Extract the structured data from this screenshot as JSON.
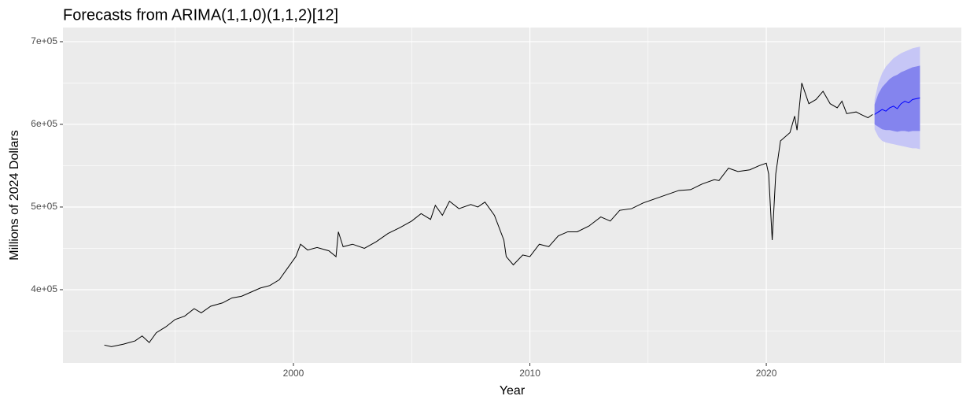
{
  "chart_data": {
    "type": "line",
    "title": "Forecasts from ARIMA(1,1,0)(1,1,2)[12]",
    "x_label": "Year",
    "y_label": "Millions of 2024 Dollars",
    "xlim": [
      1990.25,
      2028.25
    ],
    "xticks": [
      2000,
      2010,
      2020
    ],
    "x_minor_ticks": [
      1995,
      2005,
      2015,
      2025
    ],
    "ylim": [
      311400,
      717100
    ],
    "yticks": [
      {
        "value": 400000,
        "label": "4e+05"
      },
      {
        "value": 500000,
        "label": "5e+05"
      },
      {
        "value": 600000,
        "label": "6e+05"
      },
      {
        "value": 700000,
        "label": "7e+05"
      }
    ],
    "y_minor_ticks": [
      350000,
      450000,
      550000,
      650000
    ],
    "grid": true,
    "series": [
      {
        "color": "#000000",
        "x": [
          1992.0,
          1992.3,
          1992.8,
          1993.3,
          1993.6,
          1993.9,
          1994.2,
          1994.6,
          1995.0,
          1995.4,
          1995.8,
          1996.1,
          1996.5,
          1997.0,
          1997.4,
          1997.8,
          1998.2,
          1998.6,
          1999.0,
          1999.4,
          1999.8,
          2000.1,
          2000.3,
          2000.6,
          2001.0,
          2001.5,
          2001.8,
          2001.9,
          2002.1,
          2002.5,
          2003.0,
          2003.5,
          2004.0,
          2004.5,
          2005.0,
          2005.4,
          2005.8,
          2006.0,
          2006.3,
          2006.6,
          2007.0,
          2007.5,
          2007.8,
          2008.1,
          2008.5,
          2008.9,
          2009.0,
          2009.3,
          2009.7,
          2010.0,
          2010.4,
          2010.8,
          2011.2,
          2011.6,
          2012.0,
          2012.5,
          2013.0,
          2013.4,
          2013.8,
          2014.3,
          2014.8,
          2015.3,
          2015.8,
          2016.3,
          2016.8,
          2017.3,
          2017.8,
          2018.0,
          2018.4,
          2018.8,
          2019.3,
          2019.7,
          2020.0,
          2020.1,
          2020.25,
          2020.4,
          2020.6,
          2021.0,
          2021.2,
          2021.3,
          2021.5,
          2021.8,
          2022.1,
          2022.4,
          2022.7,
          2023.0,
          2023.2,
          2023.4,
          2023.8,
          2024.0,
          2024.3,
          2024.5
        ],
        "values": [
          333000,
          331000,
          334000,
          338000,
          344000,
          336000,
          348000,
          355000,
          364000,
          368000,
          377000,
          372000,
          380000,
          384000,
          390000,
          392000,
          397000,
          402000,
          405000,
          412000,
          428000,
          440000,
          455000,
          448000,
          451000,
          447000,
          440000,
          470000,
          452000,
          455000,
          450000,
          458000,
          468000,
          475000,
          483000,
          492000,
          485000,
          502000,
          490000,
          507000,
          498000,
          503000,
          500000,
          506000,
          490000,
          460000,
          440000,
          430000,
          442000,
          440000,
          455000,
          452000,
          465000,
          470000,
          470000,
          477000,
          488000,
          483000,
          496000,
          498000,
          505000,
          510000,
          515000,
          520000,
          521000,
          528000,
          533000,
          532000,
          547000,
          543000,
          545000,
          550000,
          553000,
          540000,
          460000,
          540000,
          580000,
          590000,
          610000,
          593000,
          650000,
          625000,
          630000,
          640000,
          625000,
          620000,
          628000,
          613000,
          615000,
          612000,
          608000,
          612000
        ]
      }
    ],
    "forecast": {
      "x": [
        2024.58,
        2024.74,
        2024.9,
        2025.06,
        2025.22,
        2025.38,
        2025.54,
        2025.7,
        2025.86,
        2026.02,
        2026.18,
        2026.34,
        2026.5
      ],
      "mean": [
        612000,
        615000,
        618000,
        616000,
        620000,
        622000,
        619000,
        625000,
        628000,
        626000,
        630000,
        631000,
        632000
      ],
      "lo80": [
        600000,
        597000,
        594000,
        593000,
        593000,
        592000,
        591000,
        592000,
        592000,
        591000,
        592000,
        592000,
        592000
      ],
      "hi80": [
        624000,
        637000,
        645000,
        650000,
        655000,
        658000,
        660000,
        663000,
        665000,
        667000,
        669000,
        670000,
        671000
      ],
      "lo95": [
        594000,
        585000,
        580000,
        578000,
        577000,
        576000,
        575000,
        574000,
        573000,
        572000,
        571000,
        571000,
        570000
      ],
      "hi95": [
        630000,
        650000,
        662000,
        670000,
        675000,
        680000,
        683000,
        686000,
        688000,
        690000,
        692000,
        693000,
        694000
      ],
      "mean_color": "#0000ff",
      "band80_color": "#8484ee",
      "band95_color": "#c6c6f6"
    }
  }
}
